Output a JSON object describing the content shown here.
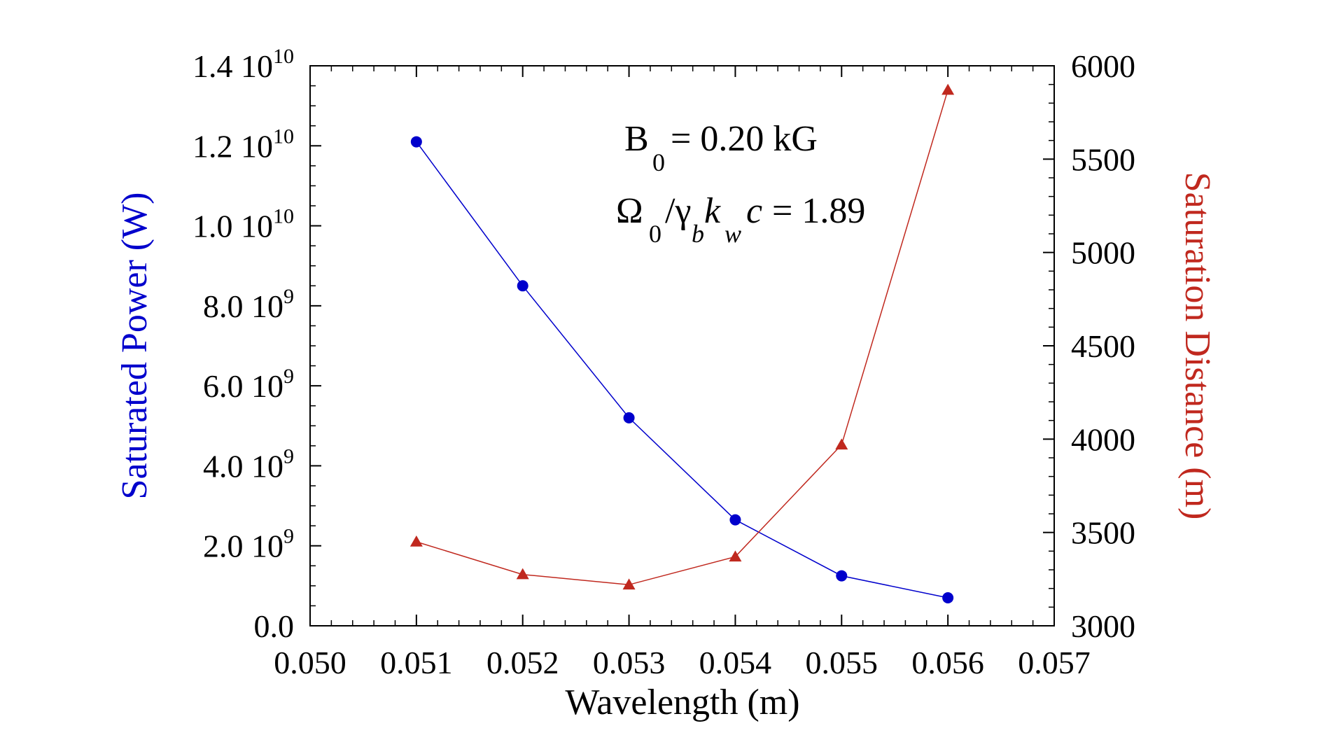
{
  "chart_data": {
    "type": "line",
    "xlabel": "Wavelength (m)",
    "xlim": [
      0.05,
      0.057
    ],
    "xticks": [
      0.05,
      0.051,
      0.052,
      0.053,
      0.054,
      0.055,
      0.056,
      0.057
    ],
    "xtick_labels": [
      "0.050",
      "0.051",
      "0.052",
      "0.053",
      "0.054",
      "0.055",
      "0.056",
      "0.057"
    ],
    "y_left": {
      "label": "Saturated Power (W)",
      "color": "#0000cc",
      "lim": [
        0,
        14000000000
      ],
      "ticks": [
        {
          "value": 0,
          "mantissa": "0.0",
          "exponent": ""
        },
        {
          "value": 2000000000,
          "mantissa": "2.0 10",
          "exponent": "9"
        },
        {
          "value": 4000000000,
          "mantissa": "4.0 10",
          "exponent": "9"
        },
        {
          "value": 6000000000,
          "mantissa": "6.0 10",
          "exponent": "9"
        },
        {
          "value": 8000000000,
          "mantissa": "8.0 10",
          "exponent": "9"
        },
        {
          "value": 10000000000,
          "mantissa": "1.0 10",
          "exponent": "10"
        },
        {
          "value": 12000000000,
          "mantissa": "1.2 10",
          "exponent": "10"
        },
        {
          "value": 14000000000,
          "mantissa": "1.4 10",
          "exponent": "10"
        }
      ]
    },
    "y_right": {
      "label": "Saturation Distance (m)",
      "color": "#c0281e",
      "lim": [
        3000,
        6000
      ],
      "ticks": [
        3000,
        3500,
        4000,
        4500,
        5000,
        5500,
        6000
      ],
      "tick_labels": [
        "3000",
        "3500",
        "4000",
        "4500",
        "5000",
        "5500",
        "6000"
      ]
    },
    "series": [
      {
        "name": "Saturated Power",
        "axis": "left",
        "color": "#0000cc",
        "marker": "circle",
        "x": [
          0.051,
          0.052,
          0.053,
          0.054,
          0.055,
          0.056
        ],
        "values": [
          12100000000,
          8500000000,
          5200000000,
          2650000000,
          1250000000,
          700000000
        ]
      },
      {
        "name": "Saturation Distance",
        "axis": "right",
        "color": "#c0281e",
        "marker": "triangle",
        "x": [
          0.051,
          0.052,
          0.053,
          0.054,
          0.055,
          0.056
        ],
        "values": [
          3450,
          3275,
          3220,
          3370,
          3970,
          5870
        ]
      }
    ],
    "annotations": {
      "line1": {
        "symbol": "B",
        "sub": "0",
        "rest": "= 0.20 kG"
      },
      "line2": {
        "omega": "Ω",
        "sub0": "0",
        "slash_gamma": "/γ",
        "sub_b": "b",
        "k": "k",
        "sub_w": "w",
        "c": "c",
        "rest": "= 1.89"
      }
    },
    "grid": false,
    "legend": "none"
  }
}
